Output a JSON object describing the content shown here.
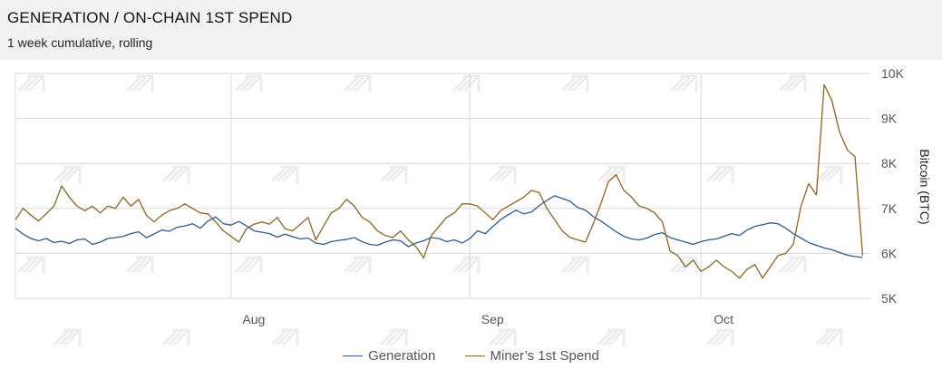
{
  "header": {
    "title": "GENERATION / ON-CHAIN 1ST SPEND",
    "subtitle": "1 week cumulative, rolling"
  },
  "legend": {
    "generation_label": "Generation",
    "miner_label": "Miner’s 1st Spend"
  },
  "colors": {
    "generation": "#2e5c8a",
    "miner": "#8a6428",
    "grid": "#d8d8d8",
    "header_bg": "#f2f2f2"
  },
  "chart_data": {
    "type": "line",
    "ylabel": "Bitcoin (BTC)",
    "ylim": [
      5000,
      10000
    ],
    "y_ticks": [
      {
        "value": 5000,
        "label": "5K"
      },
      {
        "value": 6000,
        "label": "6K"
      },
      {
        "value": 7000,
        "label": "7K"
      },
      {
        "value": 8000,
        "label": "8K"
      },
      {
        "value": 9000,
        "label": "9K"
      },
      {
        "value": 10000,
        "label": "10K"
      }
    ],
    "x_range": [
      "2019-07-04",
      "2019-10-23"
    ],
    "x_ticks": [
      {
        "date": "2019-08-01",
        "label": "Aug"
      },
      {
        "date": "2019-09-01",
        "label": "Sep"
      },
      {
        "date": "2019-10-01",
        "label": "Oct"
      }
    ],
    "grid": true,
    "legend_position": "bottom",
    "series": [
      {
        "name": "Generation",
        "points": [
          [
            "2019-07-04",
            6560
          ],
          [
            "2019-07-05",
            6430
          ],
          [
            "2019-07-06",
            6330
          ],
          [
            "2019-07-07",
            6280
          ],
          [
            "2019-07-08",
            6330
          ],
          [
            "2019-07-09",
            6240
          ],
          [
            "2019-07-10",
            6270
          ],
          [
            "2019-07-11",
            6220
          ],
          [
            "2019-07-12",
            6300
          ],
          [
            "2019-07-13",
            6320
          ],
          [
            "2019-07-14",
            6200
          ],
          [
            "2019-07-15",
            6250
          ],
          [
            "2019-07-16",
            6330
          ],
          [
            "2019-07-17",
            6350
          ],
          [
            "2019-07-18",
            6380
          ],
          [
            "2019-07-19",
            6440
          ],
          [
            "2019-07-20",
            6480
          ],
          [
            "2019-07-21",
            6350
          ],
          [
            "2019-07-22",
            6430
          ],
          [
            "2019-07-23",
            6520
          ],
          [
            "2019-07-24",
            6490
          ],
          [
            "2019-07-25",
            6580
          ],
          [
            "2019-07-26",
            6610
          ],
          [
            "2019-07-27",
            6660
          ],
          [
            "2019-07-28",
            6560
          ],
          [
            "2019-07-29",
            6720
          ],
          [
            "2019-07-30",
            6810
          ],
          [
            "2019-07-31",
            6660
          ],
          [
            "2019-08-01",
            6630
          ],
          [
            "2019-08-02",
            6710
          ],
          [
            "2019-08-03",
            6610
          ],
          [
            "2019-08-04",
            6500
          ],
          [
            "2019-08-05",
            6470
          ],
          [
            "2019-08-06",
            6440
          ],
          [
            "2019-08-07",
            6360
          ],
          [
            "2019-08-08",
            6430
          ],
          [
            "2019-08-09",
            6370
          ],
          [
            "2019-08-10",
            6320
          ],
          [
            "2019-08-11",
            6340
          ],
          [
            "2019-08-12",
            6230
          ],
          [
            "2019-08-13",
            6200
          ],
          [
            "2019-08-14",
            6260
          ],
          [
            "2019-08-15",
            6290
          ],
          [
            "2019-08-16",
            6310
          ],
          [
            "2019-08-17",
            6350
          ],
          [
            "2019-08-18",
            6260
          ],
          [
            "2019-08-19",
            6200
          ],
          [
            "2019-08-20",
            6180
          ],
          [
            "2019-08-21",
            6250
          ],
          [
            "2019-08-22",
            6300
          ],
          [
            "2019-08-23",
            6280
          ],
          [
            "2019-08-24",
            6150
          ],
          [
            "2019-08-25",
            6230
          ],
          [
            "2019-08-26",
            6280
          ],
          [
            "2019-08-27",
            6350
          ],
          [
            "2019-08-28",
            6330
          ],
          [
            "2019-08-29",
            6260
          ],
          [
            "2019-08-30",
            6300
          ],
          [
            "2019-08-31",
            6230
          ],
          [
            "2019-09-01",
            6330
          ],
          [
            "2019-09-02",
            6500
          ],
          [
            "2019-09-03",
            6440
          ],
          [
            "2019-09-04",
            6600
          ],
          [
            "2019-09-05",
            6750
          ],
          [
            "2019-09-06",
            6860
          ],
          [
            "2019-09-07",
            6960
          ],
          [
            "2019-09-08",
            6880
          ],
          [
            "2019-09-09",
            6920
          ],
          [
            "2019-09-10",
            7060
          ],
          [
            "2019-09-11",
            7180
          ],
          [
            "2019-09-12",
            7280
          ],
          [
            "2019-09-13",
            7220
          ],
          [
            "2019-09-14",
            7160
          ],
          [
            "2019-09-15",
            7020
          ],
          [
            "2019-09-16",
            6960
          ],
          [
            "2019-09-17",
            6820
          ],
          [
            "2019-09-18",
            6720
          ],
          [
            "2019-09-19",
            6600
          ],
          [
            "2019-09-20",
            6480
          ],
          [
            "2019-09-21",
            6380
          ],
          [
            "2019-09-22",
            6320
          ],
          [
            "2019-09-23",
            6300
          ],
          [
            "2019-09-24",
            6340
          ],
          [
            "2019-09-25",
            6420
          ],
          [
            "2019-09-26",
            6460
          ],
          [
            "2019-09-27",
            6350
          ],
          [
            "2019-09-28",
            6300
          ],
          [
            "2019-09-29",
            6250
          ],
          [
            "2019-09-30",
            6200
          ],
          [
            "2019-10-01",
            6260
          ],
          [
            "2019-10-02",
            6300
          ],
          [
            "2019-10-03",
            6320
          ],
          [
            "2019-10-04",
            6380
          ],
          [
            "2019-10-05",
            6440
          ],
          [
            "2019-10-06",
            6400
          ],
          [
            "2019-10-07",
            6520
          ],
          [
            "2019-10-08",
            6600
          ],
          [
            "2019-10-09",
            6640
          ],
          [
            "2019-10-10",
            6680
          ],
          [
            "2019-10-11",
            6660
          ],
          [
            "2019-10-12",
            6560
          ],
          [
            "2019-10-13",
            6440
          ],
          [
            "2019-10-14",
            6340
          ],
          [
            "2019-10-15",
            6240
          ],
          [
            "2019-10-16",
            6180
          ],
          [
            "2019-10-17",
            6120
          ],
          [
            "2019-10-18",
            6080
          ],
          [
            "2019-10-19",
            6020
          ],
          [
            "2019-10-20",
            5960
          ],
          [
            "2019-10-21",
            5930
          ],
          [
            "2019-10-22",
            5910
          ]
        ]
      },
      {
        "name": "Miner’s 1st Spend",
        "points": [
          [
            "2019-07-04",
            6750
          ],
          [
            "2019-07-05",
            7000
          ],
          [
            "2019-07-06",
            6850
          ],
          [
            "2019-07-07",
            6720
          ],
          [
            "2019-07-08",
            6880
          ],
          [
            "2019-07-09",
            7050
          ],
          [
            "2019-07-10",
            7500
          ],
          [
            "2019-07-11",
            7250
          ],
          [
            "2019-07-12",
            7050
          ],
          [
            "2019-07-13",
            6950
          ],
          [
            "2019-07-14",
            7050
          ],
          [
            "2019-07-15",
            6900
          ],
          [
            "2019-07-16",
            7050
          ],
          [
            "2019-07-17",
            7000
          ],
          [
            "2019-07-18",
            7250
          ],
          [
            "2019-07-19",
            7050
          ],
          [
            "2019-07-20",
            7200
          ],
          [
            "2019-07-21",
            6850
          ],
          [
            "2019-07-22",
            6700
          ],
          [
            "2019-07-23",
            6850
          ],
          [
            "2019-07-24",
            6950
          ],
          [
            "2019-07-25",
            7000
          ],
          [
            "2019-07-26",
            7100
          ],
          [
            "2019-07-27",
            7000
          ],
          [
            "2019-07-28",
            6900
          ],
          [
            "2019-07-29",
            6880
          ],
          [
            "2019-07-30",
            6700
          ],
          [
            "2019-07-31",
            6500
          ],
          [
            "2019-08-01",
            6380
          ],
          [
            "2019-08-02",
            6250
          ],
          [
            "2019-08-03",
            6550
          ],
          [
            "2019-08-04",
            6650
          ],
          [
            "2019-08-05",
            6700
          ],
          [
            "2019-08-06",
            6650
          ],
          [
            "2019-08-07",
            6800
          ],
          [
            "2019-08-08",
            6550
          ],
          [
            "2019-08-09",
            6500
          ],
          [
            "2019-08-10",
            6650
          ],
          [
            "2019-08-11",
            6800
          ],
          [
            "2019-08-12",
            6300
          ],
          [
            "2019-08-13",
            6600
          ],
          [
            "2019-08-14",
            6900
          ],
          [
            "2019-08-15",
            7000
          ],
          [
            "2019-08-16",
            7200
          ],
          [
            "2019-08-17",
            7050
          ],
          [
            "2019-08-18",
            6800
          ],
          [
            "2019-08-19",
            6700
          ],
          [
            "2019-08-20",
            6500
          ],
          [
            "2019-08-21",
            6400
          ],
          [
            "2019-08-22",
            6350
          ],
          [
            "2019-08-23",
            6500
          ],
          [
            "2019-08-24",
            6300
          ],
          [
            "2019-08-25",
            6150
          ],
          [
            "2019-08-26",
            5900
          ],
          [
            "2019-08-27",
            6400
          ],
          [
            "2019-08-28",
            6600
          ],
          [
            "2019-08-29",
            6800
          ],
          [
            "2019-08-30",
            6900
          ],
          [
            "2019-08-31",
            7100
          ],
          [
            "2019-09-01",
            7100
          ],
          [
            "2019-09-02",
            7050
          ],
          [
            "2019-09-03",
            6900
          ],
          [
            "2019-09-04",
            6750
          ],
          [
            "2019-09-05",
            6950
          ],
          [
            "2019-09-06",
            7050
          ],
          [
            "2019-09-07",
            7150
          ],
          [
            "2019-09-08",
            7250
          ],
          [
            "2019-09-09",
            7400
          ],
          [
            "2019-09-10",
            7350
          ],
          [
            "2019-09-11",
            7000
          ],
          [
            "2019-09-12",
            6750
          ],
          [
            "2019-09-13",
            6500
          ],
          [
            "2019-09-14",
            6350
          ],
          [
            "2019-09-15",
            6300
          ],
          [
            "2019-09-16",
            6250
          ],
          [
            "2019-09-17",
            6650
          ],
          [
            "2019-09-18",
            7100
          ],
          [
            "2019-09-19",
            7600
          ],
          [
            "2019-09-20",
            7750
          ],
          [
            "2019-09-21",
            7400
          ],
          [
            "2019-09-22",
            7250
          ],
          [
            "2019-09-23",
            7050
          ],
          [
            "2019-09-24",
            7000
          ],
          [
            "2019-09-25",
            6900
          ],
          [
            "2019-09-26",
            6700
          ],
          [
            "2019-09-27",
            6050
          ],
          [
            "2019-09-28",
            5950
          ],
          [
            "2019-09-29",
            5700
          ],
          [
            "2019-09-30",
            5850
          ],
          [
            "2019-10-01",
            5600
          ],
          [
            "2019-10-02",
            5700
          ],
          [
            "2019-10-03",
            5850
          ],
          [
            "2019-10-04",
            5700
          ],
          [
            "2019-10-05",
            5600
          ],
          [
            "2019-10-06",
            5450
          ],
          [
            "2019-10-07",
            5650
          ],
          [
            "2019-10-08",
            5750
          ],
          [
            "2019-10-09",
            5450
          ],
          [
            "2019-10-10",
            5700
          ],
          [
            "2019-10-11",
            5950
          ],
          [
            "2019-10-12",
            6000
          ],
          [
            "2019-10-13",
            6200
          ],
          [
            "2019-10-14",
            7050
          ],
          [
            "2019-10-15",
            7550
          ],
          [
            "2019-10-16",
            7300
          ],
          [
            "2019-10-17",
            9750
          ],
          [
            "2019-10-18",
            9400
          ],
          [
            "2019-10-19",
            8700
          ],
          [
            "2019-10-20",
            8300
          ],
          [
            "2019-10-21",
            8150
          ],
          [
            "2019-10-22",
            5950
          ]
        ]
      }
    ]
  }
}
